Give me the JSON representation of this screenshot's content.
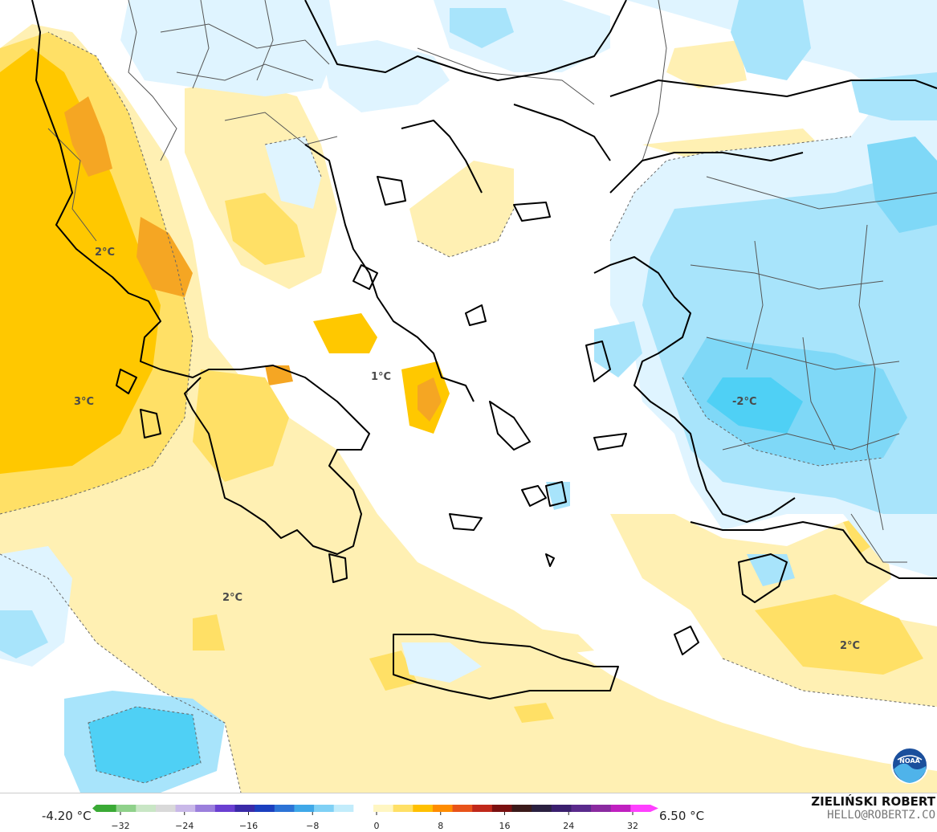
{
  "map": {
    "labels": [
      {
        "id": "albania",
        "text": "2°C"
      },
      {
        "id": "ionian",
        "text": "3°C"
      },
      {
        "id": "attica",
        "text": "1°C"
      },
      {
        "id": "anatolia",
        "text": "-2°C"
      },
      {
        "id": "cretan-sea-west",
        "text": "2°C"
      },
      {
        "id": "levantine",
        "text": "2°C"
      }
    ],
    "colors": {
      "sea_neutral": "#ffffff",
      "warm_light": "#fff0b3",
      "warm_mid": "#ffe066",
      "warm_strong": "#ffc800",
      "warm_peak": "#f5a623",
      "cold_light": "#dff4ff",
      "cold_mid": "#a8e4fb",
      "cold_strong": "#4fd0f5",
      "coastline": "#000000",
      "borders": "#555555"
    }
  },
  "legend": {
    "min_value": "-4.20 °C",
    "max_value": "6.50 °C",
    "ticks": [
      "−32",
      "−24",
      "−16",
      "−8",
      "0",
      "8",
      "16",
      "24",
      "32"
    ],
    "colors": [
      "#3aaa35",
      "#8fd18a",
      "#c9e6c5",
      "#d9d9d9",
      "#c9b8e8",
      "#9b7fdc",
      "#6a3fd1",
      "#3a2aa8",
      "#1b3fbf",
      "#2c73d6",
      "#3fa8e8",
      "#7fd0f5",
      "#c2ecfb",
      "#ffffff",
      "#fff6c2",
      "#ffe066",
      "#ffc000",
      "#ff8c00",
      "#e8531a",
      "#c0281a",
      "#7a1010",
      "#3a1a1a",
      "#2a2040",
      "#3a1f6e",
      "#5a2a8c",
      "#8a2aa0",
      "#c020c0",
      "#ff40ff"
    ]
  },
  "footer": {
    "author": "ZIELIŃSKI ROBERT",
    "email": "HELLO@ROBERTZ.CO"
  },
  "logo": {
    "icon": "noaa-logo",
    "text": "NOAA"
  }
}
